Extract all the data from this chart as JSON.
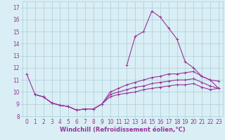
{
  "x": [
    0,
    1,
    2,
    3,
    4,
    5,
    6,
    7,
    8,
    9,
    10,
    11,
    12,
    13,
    14,
    15,
    16,
    17,
    18,
    19,
    20,
    21,
    22,
    23
  ],
  "line1": [
    11.5,
    9.8,
    null,
    null,
    null,
    null,
    null,
    null,
    null,
    null,
    null,
    null,
    12.2,
    14.6,
    15.0,
    16.7,
    16.2,
    15.3,
    14.4,
    12.5,
    12.0,
    11.3,
    11.0,
    10.3
  ],
  "line3": [
    null,
    9.8,
    9.6,
    9.1,
    8.9,
    8.8,
    8.5,
    8.6,
    8.6,
    9.0,
    10.0,
    10.3,
    10.6,
    10.8,
    11.0,
    11.2,
    11.3,
    11.5,
    11.5,
    11.6,
    11.7,
    11.3,
    11.0,
    10.9
  ],
  "line4": [
    null,
    9.8,
    9.6,
    9.1,
    8.9,
    8.8,
    8.5,
    8.6,
    8.6,
    9.0,
    9.8,
    10.0,
    10.2,
    10.4,
    10.5,
    10.7,
    10.8,
    10.9,
    11.0,
    11.0,
    11.1,
    10.8,
    10.5,
    10.3
  ],
  "line5": [
    null,
    9.8,
    9.6,
    9.1,
    8.9,
    8.8,
    8.5,
    8.6,
    8.6,
    9.0,
    9.6,
    9.8,
    9.9,
    10.0,
    10.2,
    10.3,
    10.4,
    10.5,
    10.6,
    10.6,
    10.7,
    10.4,
    10.2,
    10.3
  ],
  "color": "#993399",
  "bg_color": "#d9eff5",
  "grid_color": "#aaccd8",
  "ylim": [
    8,
    17.5
  ],
  "xlim": [
    -0.5,
    23.5
  ],
  "xlabel": "Windchill (Refroidissement éolien,°C)",
  "xlabel_fontsize": 6.0,
  "tick_fontsize": 5.5
}
